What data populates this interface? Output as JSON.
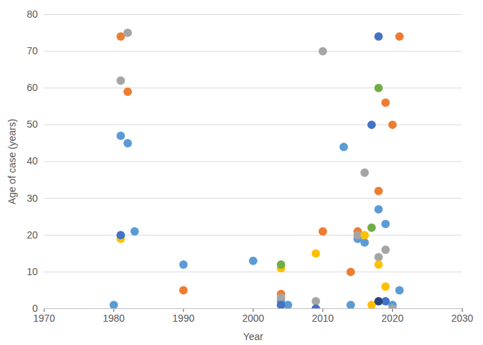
{
  "chart_data": {
    "type": "scatter",
    "x_label": "Year",
    "y_label": "Age of case (years)",
    "xlim": [
      1970,
      2030
    ],
    "xticks": [
      1970,
      1980,
      1990,
      2000,
      2010,
      2020,
      2030
    ],
    "ylim": [
      0,
      80
    ],
    "yticks": [
      0,
      10,
      20,
      30,
      40,
      50,
      60,
      70,
      80
    ],
    "grid": true,
    "marker": "circle",
    "series": [
      {
        "color": "#5B9BD5",
        "x": [
          1980,
          1981,
          1982,
          1983,
          1990,
          2000,
          2004,
          2005,
          2013,
          2014,
          2015,
          2016,
          2018,
          2019,
          2020,
          2021
        ],
        "values": [
          1,
          47,
          45,
          21,
          12,
          13,
          2,
          1,
          44,
          1,
          19,
          18,
          27,
          23,
          1,
          5
        ]
      },
      {
        "color": "#ED7D31",
        "x": [
          1981,
          1982,
          1990,
          2004,
          2010,
          2014,
          2015,
          2018,
          2019,
          2020,
          2021
        ],
        "values": [
          74,
          59,
          5,
          4,
          21,
          10,
          21,
          32,
          56,
          50,
          74
        ]
      },
      {
        "color": "#A5A5A5",
        "x": [
          1982,
          1981,
          2004,
          2009,
          2010,
          2015,
          2016,
          2018,
          2019,
          2020
        ],
        "values": [
          75,
          62,
          3,
          2,
          70,
          20,
          37,
          14,
          16,
          0
        ]
      },
      {
        "color": "#FFC000",
        "x": [
          1981,
          2004,
          2009,
          2016,
          2017,
          2018,
          2019
        ],
        "values": [
          19,
          11,
          15,
          20,
          1,
          12,
          6
        ]
      },
      {
        "color": "#4472C4",
        "x": [
          1981,
          2004,
          2009,
          2017,
          2018,
          2019
        ],
        "values": [
          20,
          1,
          0,
          50,
          74,
          2
        ]
      },
      {
        "color": "#70AD47",
        "x": [
          2004,
          2017,
          2018
        ],
        "values": [
          12,
          22,
          60
        ]
      },
      {
        "color": "#264478",
        "x": [
          2018
        ],
        "values": [
          2
        ]
      }
    ]
  }
}
